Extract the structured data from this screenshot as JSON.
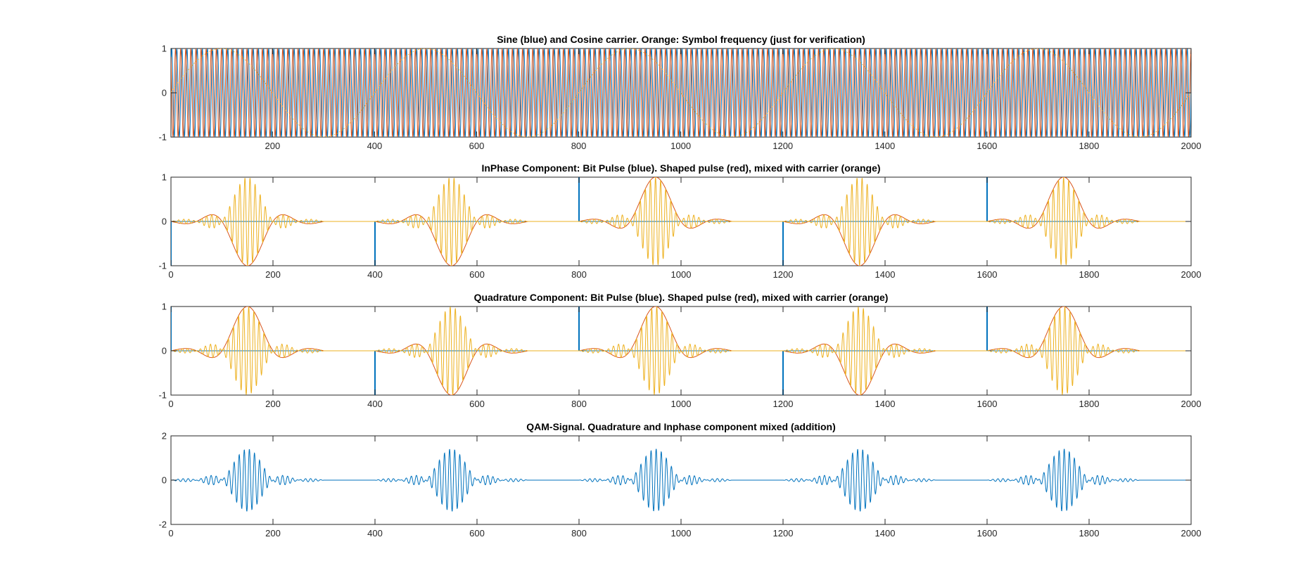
{
  "colors": {
    "blue": "#0072BD",
    "red": "#D95319",
    "orange": "#EDB120",
    "axis": "#262626"
  },
  "chart_data": [
    {
      "type": "line",
      "title": "Sine (blue) and Cosine carrier. Orange: Symbol frequency (just for verification)",
      "xlim": [
        1,
        2000
      ],
      "ylim": [
        -1,
        1
      ],
      "xticks": [
        200,
        400,
        600,
        800,
        1000,
        1200,
        1400,
        1600,
        1800,
        2000
      ],
      "yticks": [
        -1,
        0,
        1
      ],
      "carrier_cycles_per_100_samples": 10,
      "symbol_cycles_per_400_samples": 1,
      "series": [
        {
          "role": "sine carrier",
          "color": "blue",
          "formula": "sin(2*pi*n/10)",
          "style": "solid"
        },
        {
          "role": "cosine carrier",
          "color": "red",
          "formula": "cos(2*pi*n/10)",
          "style": "solid"
        },
        {
          "role": "symbol frequency",
          "color": "orange",
          "formula": "sin(2*pi*n/400)",
          "style": "dotted"
        }
      ]
    },
    {
      "type": "line",
      "title": "InPhase Component: Bit Pulse (blue). Shaped pulse (red), mixed with carrier (orange)",
      "xlim": [
        0,
        2000
      ],
      "ylim": [
        -1,
        1
      ],
      "xticks": [
        0,
        200,
        400,
        600,
        800,
        1000,
        1200,
        1400,
        1600,
        1800,
        2000
      ],
      "yticks": [
        -1,
        0,
        1
      ],
      "symbol_period": 400,
      "pulse_length": 300,
      "pulse_peak_offset": 150,
      "bit_signs": [
        -1,
        -1,
        1,
        -1,
        1
      ],
      "series": [
        {
          "role": "bit pulse",
          "color": "blue",
          "impulses_at": [
            0,
            400,
            800,
            1200,
            1600
          ]
        },
        {
          "role": "shaped pulse",
          "color": "red"
        },
        {
          "role": "mixed with carrier",
          "color": "orange"
        }
      ]
    },
    {
      "type": "line",
      "title": "Quadrature Component: Bit Pulse (blue). Shaped pulse (red), mixed with carrier (orange)",
      "xlim": [
        0,
        2000
      ],
      "ylim": [
        -1,
        1
      ],
      "xticks": [
        0,
        200,
        400,
        600,
        800,
        1000,
        1200,
        1400,
        1600,
        1800,
        2000
      ],
      "yticks": [
        -1,
        0,
        1
      ],
      "symbol_period": 400,
      "pulse_length": 300,
      "pulse_peak_offset": 150,
      "bit_signs": [
        1,
        -1,
        1,
        -1,
        1
      ],
      "series": [
        {
          "role": "bit pulse",
          "color": "blue",
          "impulses_at": [
            0,
            400,
            800,
            1200,
            1600
          ]
        },
        {
          "role": "shaped pulse",
          "color": "red"
        },
        {
          "role": "mixed with carrier",
          "color": "orange"
        }
      ]
    },
    {
      "type": "line",
      "title": "QAM-Signal. Quadrature and Inphase component mixed (addition)",
      "xlim": [
        0,
        2000
      ],
      "ylim": [
        -2,
        2
      ],
      "xticks": [
        0,
        200,
        400,
        600,
        800,
        1000,
        1200,
        1400,
        1600,
        1800,
        2000
      ],
      "yticks": [
        -2,
        0,
        2
      ],
      "peak_amplitude": 1.41,
      "series": [
        {
          "role": "sum of inphase and quadrature",
          "color": "blue"
        }
      ]
    }
  ]
}
